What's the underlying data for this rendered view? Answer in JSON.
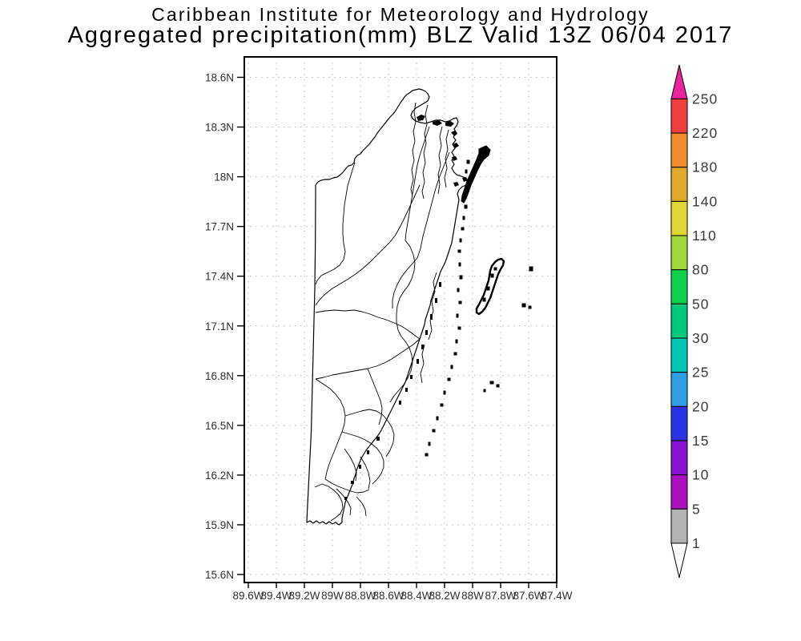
{
  "title": {
    "line1": "Caribbean Institute for Meteorology and Hydrology",
    "line2": "Aggregated precipitation(mm) BLZ Valid 13Z 06/04 2017"
  },
  "map": {
    "region": "Belize (BLZ) coastline with watershed boundaries, cayes and atolls",
    "lat_ticks": [
      "18.6N",
      "18.3N",
      "18N",
      "17.7N",
      "17.4N",
      "17.1N",
      "16.8N",
      "16.5N",
      "16.2N",
      "15.9N",
      "15.6N"
    ],
    "lon_ticks": [
      "89.6W",
      "89.4W",
      "89.2W",
      "89W",
      "88.8W",
      "88.6W",
      "88.4W",
      "88.2W",
      "88W",
      "87.8W",
      "87.6W",
      "87.4W"
    ]
  },
  "colorbar": {
    "unit": "mm",
    "levels": [
      1,
      5,
      10,
      15,
      20,
      25,
      30,
      50,
      80,
      110,
      140,
      180,
      220,
      250
    ],
    "labels_top_to_bottom": [
      "250",
      "220",
      "180",
      "140",
      "110",
      "80",
      "50",
      "30",
      "25",
      "20",
      "15",
      "10",
      "5",
      "1"
    ],
    "segments_top_to_bottom": [
      {
        "range": "220-250",
        "color": "#F23F3F"
      },
      {
        "range": "180-220",
        "color": "#EF8D30"
      },
      {
        "range": "140-180",
        "color": "#DFA92C"
      },
      {
        "range": "110-140",
        "color": "#E2D834"
      },
      {
        "range": "80-110",
        "color": "#9ED83B"
      },
      {
        "range": "50-80",
        "color": "#0FD04C"
      },
      {
        "range": "30-50",
        "color": "#00C87D"
      },
      {
        "range": "25-30",
        "color": "#00C7B4"
      },
      {
        "range": "20-25",
        "color": "#2FA0E8"
      },
      {
        "range": "15-20",
        "color": "#2B33E8"
      },
      {
        "range": "10-15",
        "color": "#8814D6"
      },
      {
        "range": "5-10",
        "color": "#AA10BE"
      },
      {
        "range": "1-5",
        "color": "#B3B3B3"
      }
    ],
    "over_arrow": {
      "range": ">250",
      "color": "#E8259D"
    },
    "under_arrow": {
      "range": "<1",
      "color": "#FFFFFF"
    }
  }
}
